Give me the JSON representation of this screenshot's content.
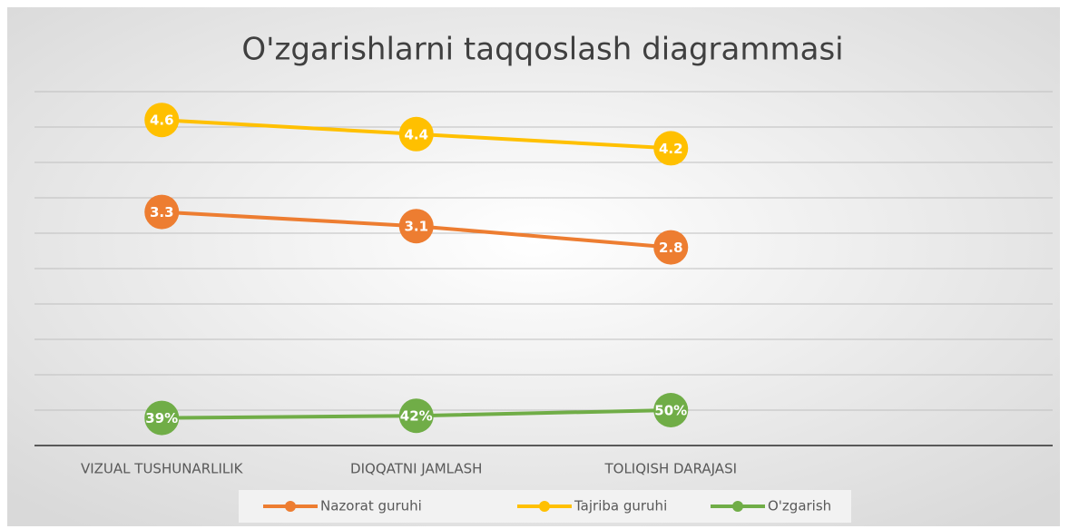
{
  "chart_data": {
    "type": "line",
    "title": "O'zgarishlarni taqqoslash diagrammasi",
    "categories": [
      "VIZUAL TUSHUNARLILIK",
      "DIQQATNI JAMLASH",
      "TOLIQISH DARAJASI",
      null
    ],
    "series": [
      {
        "name": "Nazorat guruhi",
        "color": "#ed7d31",
        "values": [
          3.3,
          3.1,
          2.8,
          null
        ]
      },
      {
        "name": "Tajriba guruhi",
        "color": "#ffc000",
        "values": [
          4.6,
          4.4,
          4.2,
          null
        ]
      },
      {
        "name": "O'zgarish",
        "color": "#70ad47",
        "values": [
          0.39,
          0.42,
          0.5,
          null
        ],
        "value_labels": [
          "39%",
          "42%",
          "50%",
          null
        ]
      }
    ],
    "ylim": [
      0,
      5
    ],
    "yticks": [
      0,
      0.5,
      1,
      1.5,
      2,
      2.5,
      3,
      3.5,
      4,
      4.5,
      5
    ],
    "grid": true,
    "legend": "bottom"
  }
}
